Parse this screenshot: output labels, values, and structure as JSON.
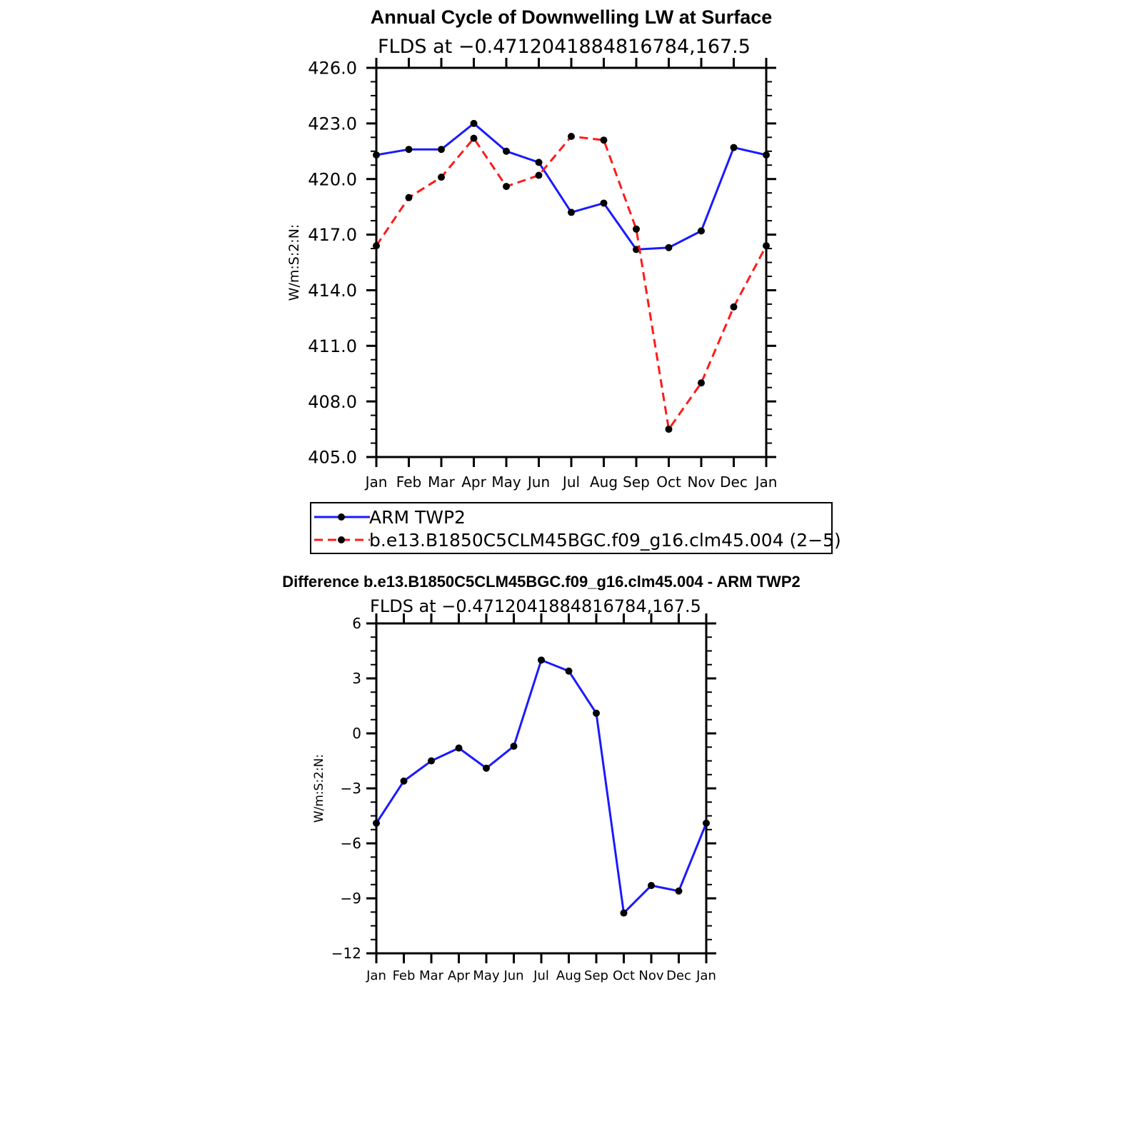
{
  "chart_data": [
    {
      "type": "line",
      "title": "Annual Cycle of Downwelling LW at Surface",
      "subtitle": "FLDS at −0.4712041884816784,167.5",
      "xlabel": "",
      "ylabel": "W/m:S:2:N:",
      "categories": [
        "Jan",
        "Feb",
        "Mar",
        "Apr",
        "May",
        "Jun",
        "Jul",
        "Aug",
        "Sep",
        "Oct",
        "Nov",
        "Dec",
        "Jan"
      ],
      "ylim": [
        405.0,
        426.0
      ],
      "yticks": [
        "405.0",
        "408.0",
        "411.0",
        "414.0",
        "417.0",
        "420.0",
        "423.0",
        "426.0"
      ],
      "grid": false,
      "legend_placement": "below",
      "series": [
        {
          "name": "ARM TWP2",
          "color": "#1a1aff",
          "dash": "solid",
          "marker": "dot",
          "values": [
            421.3,
            421.6,
            421.6,
            423.0,
            421.5,
            420.9,
            418.2,
            418.7,
            416.2,
            416.3,
            417.2,
            421.7,
            421.3
          ]
        },
        {
          "name": "b.e13.B1850C5CLM45BGC.f09_g16.clm45.004 (2−5)",
          "color": "#ff1a1a",
          "dash": "dashed",
          "marker": "dot",
          "values": [
            416.4,
            419.0,
            420.1,
            422.2,
            419.6,
            420.2,
            422.3,
            422.1,
            417.3,
            406.5,
            409.0,
            413.1,
            416.4
          ]
        }
      ]
    },
    {
      "type": "line",
      "title": "Difference b.e13.B1850C5CLM45BGC.f09_g16.clm45.004 - ARM TWP2",
      "subtitle": "FLDS at −0.4712041884816784,167.5",
      "xlabel": "",
      "ylabel": "W/m:S:2:N:",
      "categories": [
        "Jan",
        "Feb",
        "Mar",
        "Apr",
        "May",
        "Jun",
        "Jul",
        "Aug",
        "Sep",
        "Oct",
        "Nov",
        "Dec",
        "Jan"
      ],
      "ylim": [
        -12,
        6
      ],
      "yticks": [
        "−12",
        "−9",
        "−6",
        "−3",
        "0",
        "3",
        "6"
      ],
      "grid": false,
      "series": [
        {
          "color": "#1a1aff",
          "dash": "solid",
          "marker": "dot",
          "values": [
            -4.9,
            -2.6,
            -1.5,
            -0.8,
            -1.9,
            -0.7,
            4.0,
            3.4,
            1.1,
            -9.8,
            -8.3,
            -8.6,
            -4.9
          ]
        }
      ]
    }
  ]
}
